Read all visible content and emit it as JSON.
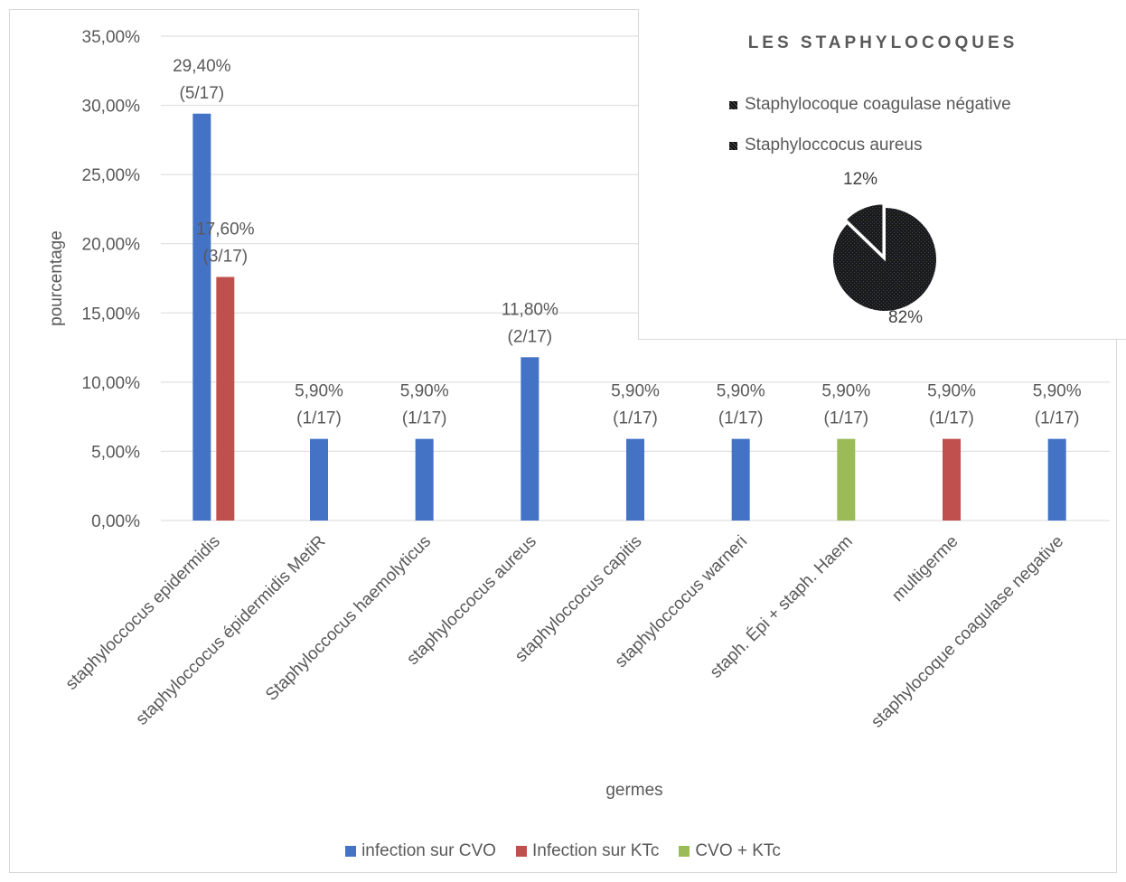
{
  "chart_data": [
    {
      "type": "bar",
      "xlabel": "germes",
      "ylabel": "pourcentage",
      "ylim": [
        0,
        35
      ],
      "yticks": [
        "0,00%",
        "5,00%",
        "10,00%",
        "15,00%",
        "20,00%",
        "25,00%",
        "30,00%",
        "35,00%"
      ],
      "grid": true,
      "legend_position": "bottom",
      "categories": [
        "staphyloccocus epidermidis",
        "staphyloccocus épidermidis MetiR",
        "Staphyloccocus haemolyticus",
        "staphyloccocus aureus",
        "staphyloccocus capitis",
        "staphyloccocus warneri",
        "staph. Épi + staph. Haem",
        "multigerme",
        "staphylocoque coagulase negative"
      ],
      "series": [
        {
          "name": "infection sur CVO",
          "color": "#4472c4",
          "values": [
            29.4,
            5.9,
            5.9,
            11.8,
            5.9,
            5.9,
            null,
            null,
            5.9
          ]
        },
        {
          "name": "Infection sur KTc",
          "color": "#c0504d",
          "values": [
            17.6,
            null,
            null,
            null,
            null,
            null,
            null,
            5.9,
            null
          ]
        },
        {
          "name": "CVO + KTc",
          "color": "#9bbb59",
          "values": [
            null,
            null,
            null,
            null,
            null,
            null,
            5.9,
            null,
            null
          ]
        }
      ],
      "data_labels": [
        {
          "category": 0,
          "series": 0,
          "line1": "29,40%",
          "line2": "(5/17)"
        },
        {
          "category": 0,
          "series": 1,
          "line1": "17,60%",
          "line2": "(3/17)"
        },
        {
          "category": 1,
          "series": 0,
          "line1": "5,90%",
          "line2": "(1/17)"
        },
        {
          "category": 2,
          "series": 0,
          "line1": "5,90%",
          "line2": "(1/17)"
        },
        {
          "category": 3,
          "series": 0,
          "line1": "11,80%",
          "line2": "(2/17)"
        },
        {
          "category": 4,
          "series": 0,
          "line1": "5,90%",
          "line2": "(1/17)"
        },
        {
          "category": 5,
          "series": 0,
          "line1": "5,90%",
          "line2": "(1/17)"
        },
        {
          "category": 6,
          "series": 2,
          "line1": "5,90%",
          "line2": "(1/17)"
        },
        {
          "category": 7,
          "series": 1,
          "line1": "5,90%",
          "line2": "(1/17)"
        },
        {
          "category": 8,
          "series": 0,
          "line1": "5,90%",
          "line2": "(1/17)"
        }
      ]
    },
    {
      "type": "pie",
      "title": "LES STAPHYLOCOQUES",
      "legend_position": "top",
      "slices": [
        {
          "name": "Staphylocoque coagulase négative",
          "value": 12,
          "label": "12%"
        },
        {
          "name": "Staphyloccocus aureus",
          "value": 82,
          "label": "82%"
        }
      ]
    }
  ]
}
